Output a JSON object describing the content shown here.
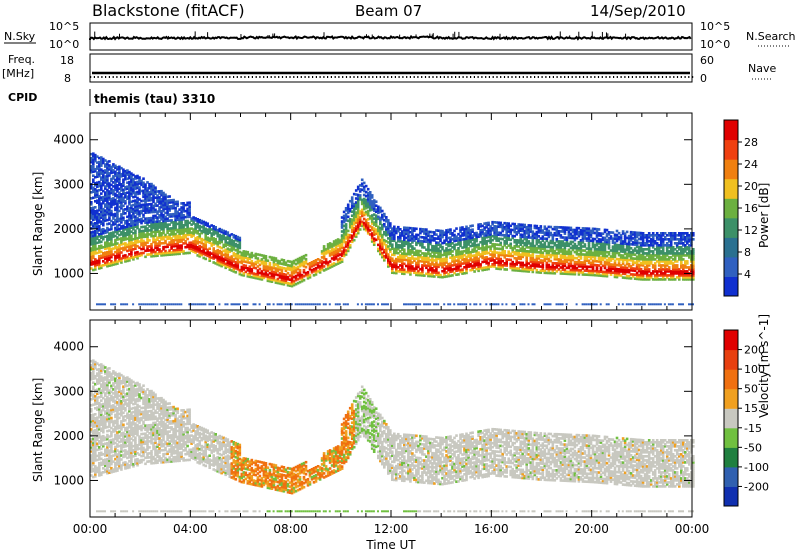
{
  "header": {
    "station": "Blackstone (fitACF)",
    "beam": "Beam 07",
    "date": "14/Sep/2010"
  },
  "side_labels": {
    "nsky": "N.Sky",
    "freq": "Freq.",
    "freq_unit": "[MHz]",
    "cpid": "CPID",
    "nsearch": "N.Search",
    "nave": "Nave"
  },
  "cpid_value": "themis (tau) 3310",
  "small_axes": {
    "nsky_ticks": [
      "10^5",
      "10^0"
    ],
    "nsearch_ticks": [
      "10^5",
      "10^0"
    ],
    "freq_ticks": [
      "18",
      "8"
    ],
    "nave_ticks": [
      "60",
      "0"
    ]
  },
  "colors": {
    "power_scale": [
      "#1030d0",
      "#3060c0",
      "#2a7090",
      "#3c9068",
      "#6cb040",
      "#f0c020",
      "#f08010",
      "#f04010",
      "#e00000"
    ],
    "velocity_scale": [
      "#1030b0",
      "#3060b0",
      "#208040",
      "#70c040",
      "#c8c8c0",
      "#f0a020",
      "#f07010",
      "#e84010",
      "#e00000"
    ]
  },
  "chart_data": [
    {
      "type": "heatmap",
      "panel": "power",
      "ylabel": "Slant Range [km]",
      "yticks": [
        "4000",
        "3000",
        "2000",
        "1000"
      ],
      "ylim": [
        180,
        4600
      ],
      "xlim": [
        0,
        24
      ],
      "colorbar_label": "Power [dB]",
      "colorbar_ticks": [
        "28",
        "24",
        "20",
        "16",
        "12",
        "8",
        "4"
      ],
      "colorbar_range": [
        0,
        32
      ],
      "main_band_range_km": [
        [
          0,
          1200
        ],
        [
          2,
          1500
        ],
        [
          4,
          1600
        ],
        [
          6,
          1100
        ],
        [
          8,
          850
        ],
        [
          10,
          1400
        ],
        [
          10.8,
          2200
        ],
        [
          12,
          1150
        ],
        [
          14,
          1050
        ],
        [
          16,
          1250
        ],
        [
          18,
          1150
        ],
        [
          20,
          1100
        ],
        [
          22,
          1000
        ],
        [
          24,
          1000
        ]
      ]
    },
    {
      "type": "heatmap",
      "panel": "velocity",
      "ylabel": "Slant Range [km]",
      "yticks": [
        "4000",
        "3000",
        "2000",
        "1000"
      ],
      "ylim": [
        180,
        4600
      ],
      "xlim": [
        0,
        24
      ],
      "colorbar_label": "Velocity [m s^-1]",
      "colorbar_ticks": [
        "200",
        "100",
        "50",
        "15",
        "-15",
        "-50",
        "-100",
        "-200"
      ],
      "colorbar_range": [
        -250,
        250
      ],
      "xticks": [
        "00:00",
        "04:00",
        "08:00",
        "12:00",
        "16:00",
        "20:00",
        "00:00"
      ],
      "xlabel": "Time UT"
    }
  ]
}
